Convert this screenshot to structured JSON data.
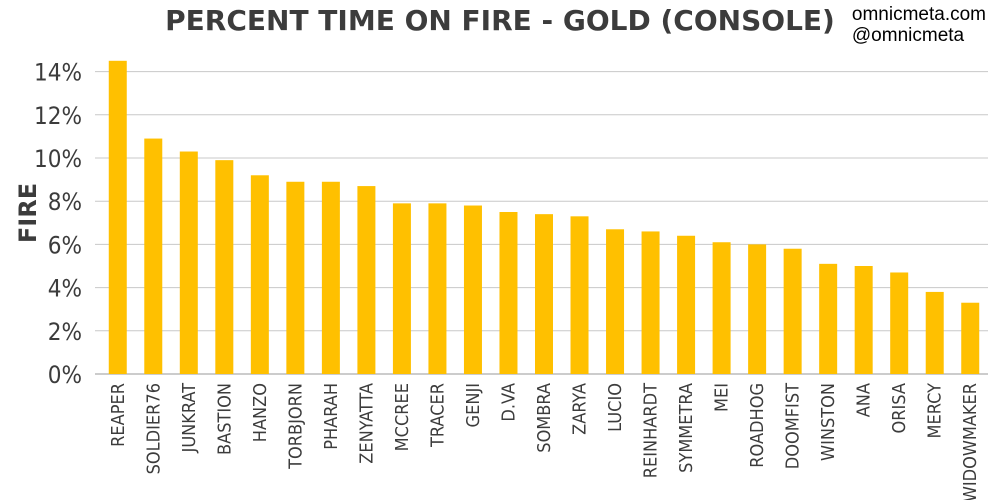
{
  "watermark": {
    "line1": "omnicmeta.com",
    "line2": "@omnicmeta"
  },
  "chart_data": {
    "type": "bar",
    "title": "PERCENT TIME ON FIRE - GOLD (CONSOLE)",
    "ylabel": "FIRE",
    "xlabel": "",
    "ylim": [
      0,
      15
    ],
    "yticks": [
      0,
      2,
      4,
      6,
      8,
      10,
      12,
      14
    ],
    "ytick_suffix": "%",
    "grid": true,
    "bar_color": "#ffc000",
    "categories": [
      "REAPER",
      "SOLDIER76",
      "JUNKRAT",
      "BASTION",
      "HANZO",
      "TORBJORN",
      "PHARAH",
      "ZENYATTA",
      "MCCREE",
      "TRACER",
      "GENJI",
      "D.VA",
      "SOMBRA",
      "ZARYA",
      "LUCIO",
      "REINHARDT",
      "SYMMETRA",
      "MEI",
      "ROADHOG",
      "DOOMFIST",
      "WINSTON",
      "ANA",
      "ORISA",
      "MERCY",
      "WIDOWMAKER"
    ],
    "values": [
      14.5,
      10.9,
      10.3,
      9.9,
      9.2,
      8.9,
      8.9,
      8.7,
      7.9,
      7.9,
      7.8,
      7.5,
      7.4,
      7.3,
      6.7,
      6.6,
      6.4,
      6.1,
      6.0,
      5.8,
      5.1,
      5.0,
      4.7,
      3.8,
      3.3
    ]
  }
}
